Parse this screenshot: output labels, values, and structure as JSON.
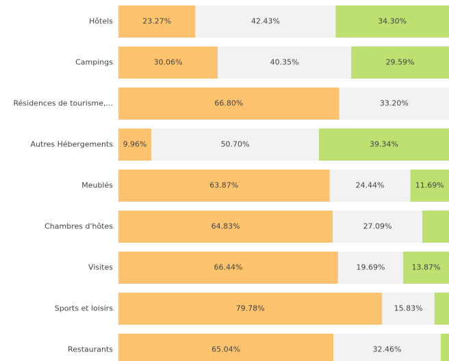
{
  "chart_data": {
    "type": "stacked_barh",
    "categories": [
      "Hôtels",
      "Campings",
      "Résidences de tourisme,...",
      "Autres Hébergements",
      "Meublés",
      "Chambres d'hôtes",
      "Visites",
      "Sports et loisirs",
      "Restaurants"
    ],
    "xlim": [
      0,
      100
    ],
    "series": [
      {
        "color": "#fdc36f",
        "values": [
          23.27,
          30.06,
          66.8,
          9.96,
          63.87,
          64.83,
          66.44,
          79.78,
          65.04
        ],
        "value_labels": [
          "23.27%",
          "30.06%",
          "66.80%",
          "9.96%",
          "63.87%",
          "64.83%",
          "66.44%",
          "79.78%",
          "65.04%"
        ]
      },
      {
        "color": "#f2f2f2",
        "values": [
          42.43,
          40.35,
          33.2,
          50.7,
          24.44,
          27.09,
          19.69,
          15.83,
          32.46
        ],
        "value_labels": [
          "42.43%",
          "40.35%",
          "33.20%",
          "50.70%",
          "24.44%",
          "27.09%",
          "19.69%",
          "15.83%",
          "32.46%"
        ]
      },
      {
        "color": "#bde070",
        "values": [
          34.3,
          29.59,
          0,
          39.34,
          11.69,
          8.08,
          13.87,
          4.39,
          2.5
        ],
        "value_labels": [
          "34.30%",
          "29.59%",
          null,
          "39.34%",
          "11.69%",
          null,
          "13.87%",
          null,
          null
        ]
      }
    ]
  }
}
